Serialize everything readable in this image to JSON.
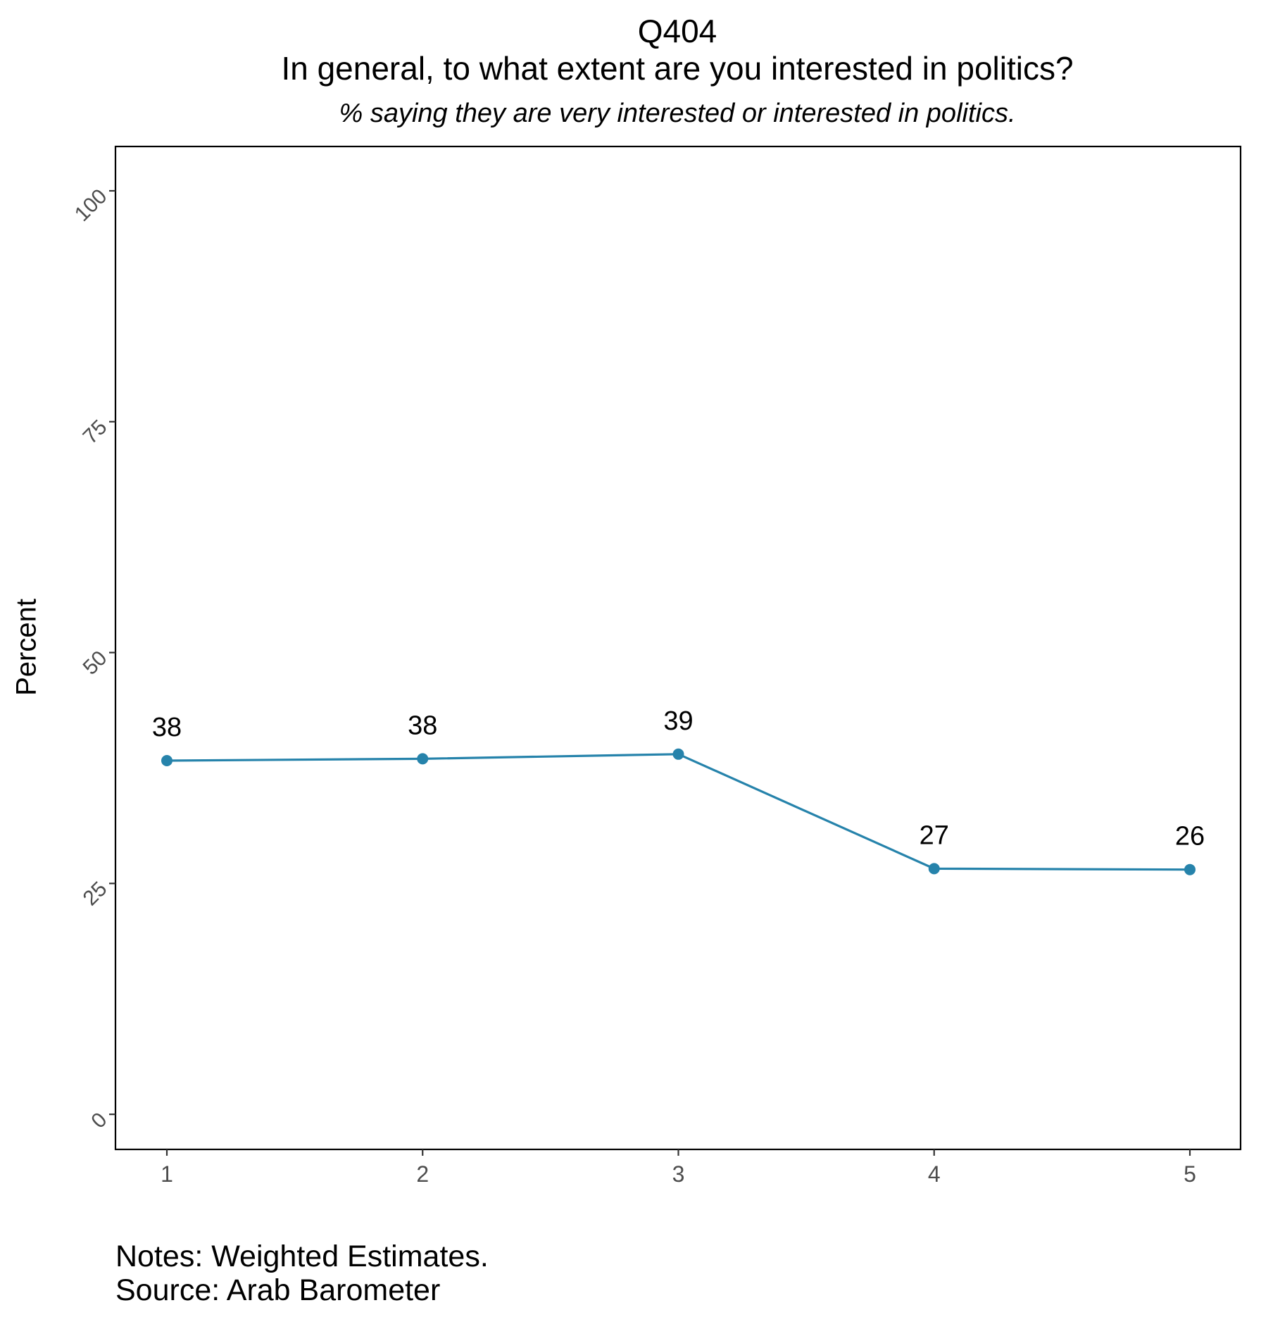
{
  "chart_data": {
    "type": "line",
    "title": "Q404",
    "question": "In general, to what extent are you interested in politics?",
    "subtitle": "% saying they are very interested or interested in politics.",
    "xlabel": "",
    "ylabel": "Percent",
    "categories": [
      "1",
      "2",
      "3",
      "4",
      "5"
    ],
    "series": [
      {
        "values": [
          38.3,
          38.5,
          39.0,
          26.6,
          26.5
        ],
        "data_labels": [
          "38",
          "38",
          "39",
          "27",
          "26"
        ],
        "color": "#2683ab"
      }
    ],
    "yticks": [
      0,
      25,
      50,
      75,
      100
    ],
    "ytick_labels": [
      "0",
      "25",
      "50",
      "75",
      "100"
    ],
    "ylim": [
      -3.8,
      104.8
    ],
    "grid": false,
    "legend": "none"
  },
  "notes": {
    "notes_text": "Notes: Weighted Estimates.",
    "source_text": "Source: Arab Barometer"
  }
}
